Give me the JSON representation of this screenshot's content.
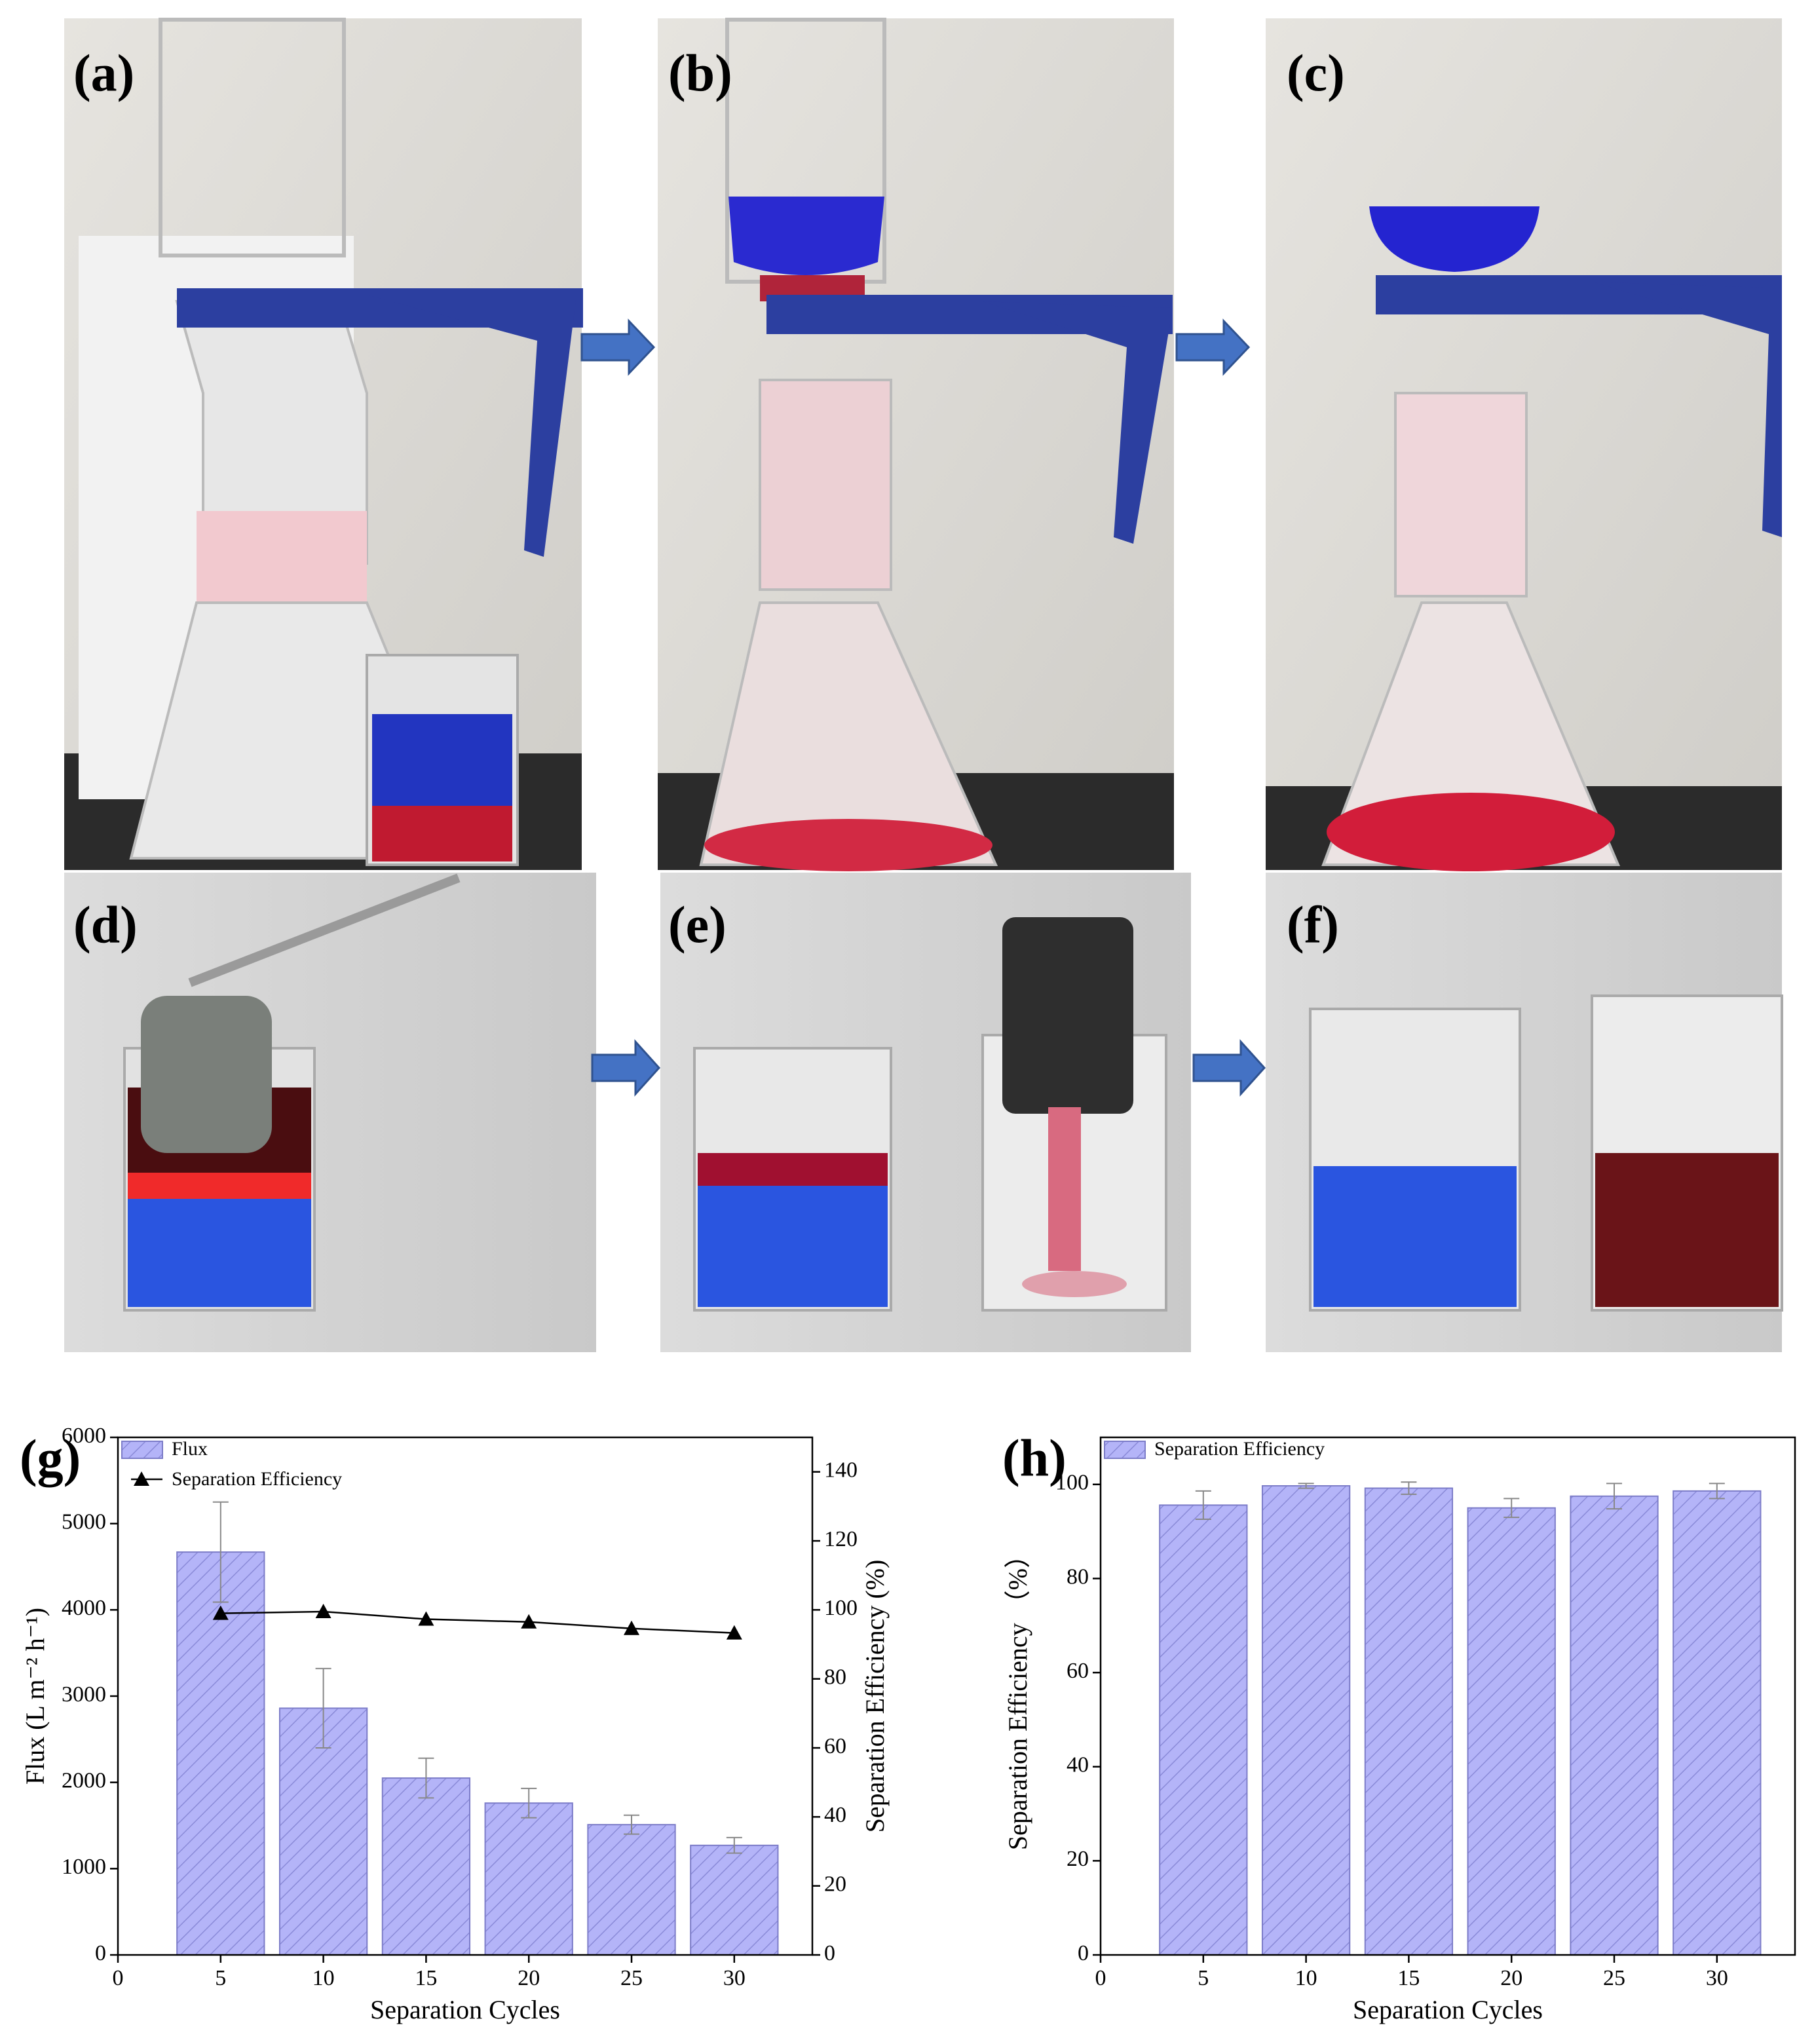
{
  "photos": [
    "(a)",
    "(b)",
    "(c)",
    "(d)",
    "(e)",
    "(f)"
  ],
  "chart_data": [
    {
      "type": "bar",
      "panel_label": "(g)",
      "x_label": "Separation Cycles",
      "y_label": "Flux (L m⁻² h⁻¹)",
      "y2_label": "Separation  Efficiency (%)",
      "x": [
        5,
        10,
        15,
        20,
        25,
        30
      ],
      "xlim": [
        0,
        33.8
      ],
      "xticks": [
        0,
        5,
        10,
        15,
        20,
        25,
        30
      ],
      "ylim": [
        0,
        6000
      ],
      "yticks": [
        0,
        1000,
        2000,
        3000,
        4000,
        5000,
        6000
      ],
      "y2lim": [
        0,
        150
      ],
      "y2ticks": [
        0,
        20,
        40,
        60,
        80,
        100,
        120,
        140
      ],
      "hatch": true,
      "legend": "upper left",
      "series": [
        {
          "name": "Flux",
          "type": "bar",
          "color": "#b4b4f8",
          "values": [
            4670,
            2860,
            2050,
            1760,
            1510,
            1270
          ],
          "errors": [
            580,
            460,
            230,
            170,
            110,
            90
          ]
        },
        {
          "name": "Separation Efficiency",
          "type": "line",
          "marker": "triangle",
          "axis": "y2",
          "color": "#000000",
          "values": [
            99,
            99.5,
            97.3,
            96.5,
            94.6,
            93.3
          ]
        }
      ]
    },
    {
      "type": "bar",
      "panel_label": "(h)",
      "x_label": "Separation Cycles",
      "y_label": "Separation Efficiency （%）",
      "x": [
        5,
        10,
        15,
        20,
        25,
        30
      ],
      "xlim": [
        0,
        33.8
      ],
      "xticks": [
        0,
        5,
        10,
        15,
        20,
        25,
        30
      ],
      "ylim": [
        0,
        110
      ],
      "yticks": [
        0,
        20,
        40,
        60,
        80,
        100
      ],
      "hatch": true,
      "legend": "upper left",
      "series": [
        {
          "name": "Separation Efficiency",
          "type": "bar",
          "color": "#b4b4f8",
          "values": [
            95.6,
            99.7,
            99.2,
            95,
            97.5,
            98.6
          ],
          "errors": [
            3,
            0.5,
            1.3,
            2,
            2.7,
            1.6
          ]
        }
      ]
    }
  ]
}
